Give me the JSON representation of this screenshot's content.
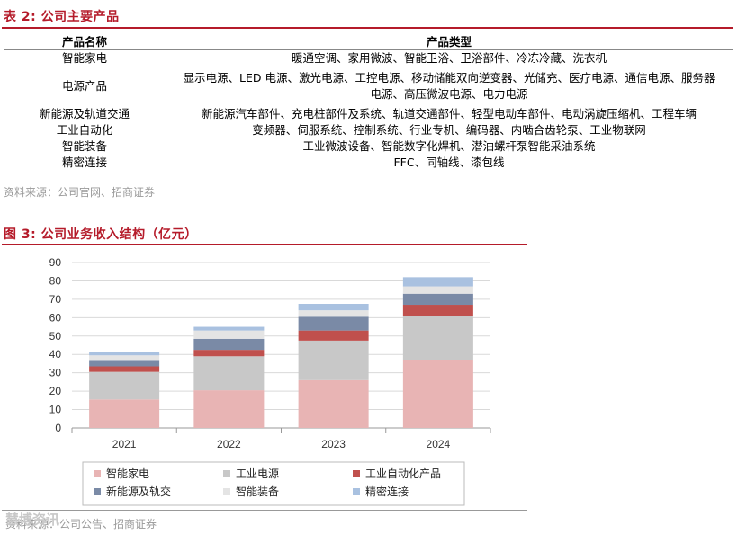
{
  "table": {
    "title": "表 2: 公司主要产品",
    "headers": [
      "产品名称",
      "产品类型"
    ],
    "rows": [
      {
        "name": "智能家电",
        "types": "暖通空调、家用微波、智能卫浴、卫浴部件、冷冻冷藏、洗衣机"
      },
      {
        "name": "电源产品",
        "types": "显示电源、LED 电源、激光电源、工控电源、移动储能双向逆变器、光储充、医疗电源、通信电源、服务器电源、高压微波电源、电力电源"
      },
      {
        "name": "新能源及轨道交通",
        "types": "新能源汽车部件、充电桩部件及系统、轨道交通部件、轻型电动车部件、电动涡旋压缩机、工程车辆"
      },
      {
        "name": "工业自动化",
        "types": "变频器、伺服系统、控制系统、行业专机、编码器、内啮合齿轮泵、工业物联网"
      },
      {
        "name": "智能装备",
        "types": "工业微波设备、智能数字化焊机、潜油螺杆泵智能采油系统"
      },
      {
        "name": "精密连接",
        "types": "FFC、同轴线、漆包线"
      }
    ],
    "source": "资料来源：公司官网、招商证券"
  },
  "figure": {
    "title": "图 3: 公司业务收入结构（亿元）",
    "source": "资料来源：公司公告、招商证券",
    "watermark": "慧博资讯"
  },
  "chart_data": {
    "type": "bar",
    "stacked": true,
    "categories": [
      "2021",
      "2022",
      "2023",
      "2024"
    ],
    "ylim": [
      0,
      90
    ],
    "yticks": [
      0,
      10,
      20,
      30,
      40,
      50,
      60,
      70,
      80,
      90
    ],
    "grid": true,
    "legend_position": "bottom",
    "series": [
      {
        "name": "智能家电",
        "color": "#e8b4b4",
        "values": [
          15.5,
          20.5,
          26,
          37
        ]
      },
      {
        "name": "工业电源",
        "color": "#c8c8c8",
        "values": [
          15,
          18.5,
          21.5,
          24
        ]
      },
      {
        "name": "工业自动化产品",
        "color": "#c0504d",
        "values": [
          3,
          3.5,
          5.5,
          6
        ]
      },
      {
        "name": "新能源及轨交",
        "color": "#7a8aa6",
        "values": [
          3,
          6,
          7.5,
          6
        ]
      },
      {
        "name": "智能装备",
        "color": "#e4e4e4",
        "values": [
          3,
          4.5,
          3.5,
          4
        ]
      },
      {
        "name": "精密连接",
        "color": "#a9c1e0",
        "values": [
          2,
          2,
          3.5,
          5
        ]
      }
    ]
  }
}
